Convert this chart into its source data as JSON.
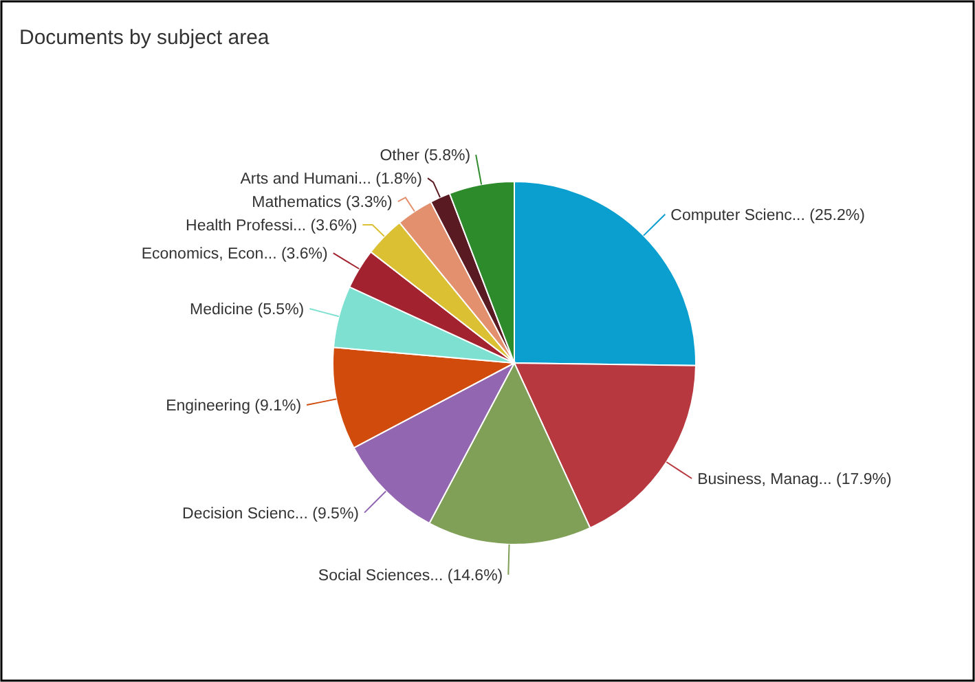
{
  "chart_data": {
    "type": "pie",
    "title": "Documents by subject area",
    "categories": [
      "Computer Scienc...",
      "Business, Manag...",
      "Social Sciences...",
      "Decision Scienc...",
      "Engineering",
      "Medicine",
      "Economics, Econ...",
      "Health Professi...",
      "Mathematics",
      "Arts and Humani...",
      "Other"
    ],
    "values": [
      25.2,
      17.9,
      14.6,
      9.5,
      9.1,
      5.5,
      3.6,
      3.6,
      3.3,
      1.8,
      5.8
    ],
    "value_labels": [
      "(25.2%)",
      "(17.9%)",
      "(14.6%)",
      "(9.5%)",
      "(9.1%)",
      "(5.5%)",
      "(3.6%)",
      "(3.6%)",
      "(3.3%)",
      "(1.8%)",
      "(5.8%)"
    ],
    "colors": [
      "#0b9fcf",
      "#b7393f",
      "#809f57",
      "#9266b0",
      "#d04b0c",
      "#7de0d0",
      "#a3222f",
      "#dcc034",
      "#e3906e",
      "#5a1a22",
      "#2e8b2c"
    ]
  }
}
